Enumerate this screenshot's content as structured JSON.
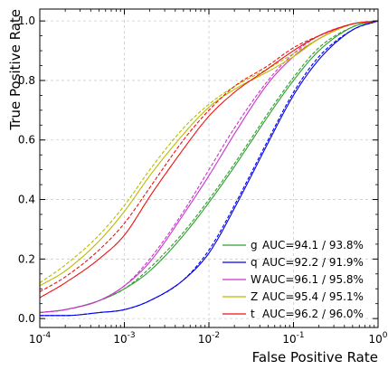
{
  "chart_data": {
    "type": "line",
    "title": "",
    "xlabel": "False Positive Rate",
    "ylabel": "True Positive Rate",
    "xscale": "log",
    "xlim": [
      0.0001,
      1
    ],
    "ylim": [
      -0.03,
      1.04
    ],
    "grid": true,
    "legend_position": "bottom-right",
    "x_ticks": [
      0.0001,
      0.001,
      0.01,
      0.1,
      1
    ],
    "x_tick_labels": [
      {
        "base": "10",
        "exp": "-4"
      },
      {
        "base": "10",
        "exp": "-3"
      },
      {
        "base": "10",
        "exp": "-2"
      },
      {
        "base": "10",
        "exp": "-1"
      },
      {
        "base": "10",
        "exp": "0"
      }
    ],
    "y_ticks": [
      0.0,
      0.2,
      0.4,
      0.6,
      0.8,
      1.0
    ],
    "y_tick_labels": [
      "0.0",
      "0.2",
      "0.4",
      "0.6",
      "0.8",
      "1.0"
    ],
    "x": [
      0.0001,
      0.0002,
      0.0005,
      0.001,
      0.002,
      0.005,
      0.01,
      0.02,
      0.05,
      0.1,
      0.2,
      0.5,
      1.0
    ],
    "series": [
      {
        "label": "g",
        "legend": "AUC=94.1 / 93.8%",
        "color": "#2ca02c",
        "solid": [
          0.02,
          0.03,
          0.06,
          0.1,
          0.16,
          0.28,
          0.39,
          0.51,
          0.68,
          0.8,
          0.9,
          0.98,
          1.0
        ],
        "dashed": [
          0.02,
          0.03,
          0.06,
          0.1,
          0.17,
          0.29,
          0.4,
          0.52,
          0.69,
          0.81,
          0.91,
          0.98,
          1.0
        ]
      },
      {
        "label": "q",
        "legend": "AUC=92.2 / 91.9%",
        "color": "#0000ee",
        "solid": [
          0.01,
          0.01,
          0.02,
          0.03,
          0.06,
          0.13,
          0.22,
          0.37,
          0.59,
          0.75,
          0.87,
          0.97,
          1.0
        ],
        "dashed": [
          0.01,
          0.01,
          0.02,
          0.03,
          0.06,
          0.13,
          0.23,
          0.38,
          0.6,
          0.76,
          0.88,
          0.97,
          1.0
        ]
      },
      {
        "label": "W",
        "legend": "AUC=96.1 / 95.8%",
        "color": "#cc33cc",
        "solid": [
          0.02,
          0.03,
          0.06,
          0.11,
          0.19,
          0.35,
          0.48,
          0.62,
          0.79,
          0.88,
          0.94,
          0.99,
          1.0
        ],
        "dashed": [
          0.02,
          0.03,
          0.06,
          0.11,
          0.2,
          0.36,
          0.5,
          0.64,
          0.8,
          0.89,
          0.95,
          0.99,
          1.0
        ]
      },
      {
        "label": "Z",
        "legend": "AUC=95.4 / 95.1%",
        "color": "#bbbb00",
        "solid": [
          0.11,
          0.16,
          0.26,
          0.36,
          0.48,
          0.62,
          0.71,
          0.77,
          0.83,
          0.88,
          0.94,
          0.99,
          1.0
        ],
        "dashed": [
          0.12,
          0.18,
          0.28,
          0.38,
          0.5,
          0.64,
          0.72,
          0.78,
          0.84,
          0.89,
          0.94,
          0.99,
          1.0
        ]
      },
      {
        "label": "t",
        "legend": "AUC=96.2 / 96.0%",
        "color": "#ee1111",
        "solid": [
          0.07,
          0.12,
          0.2,
          0.28,
          0.41,
          0.57,
          0.68,
          0.76,
          0.84,
          0.9,
          0.95,
          0.99,
          1.0
        ],
        "dashed": [
          0.09,
          0.14,
          0.23,
          0.32,
          0.44,
          0.6,
          0.7,
          0.78,
          0.85,
          0.91,
          0.95,
          0.99,
          1.0
        ]
      }
    ]
  }
}
